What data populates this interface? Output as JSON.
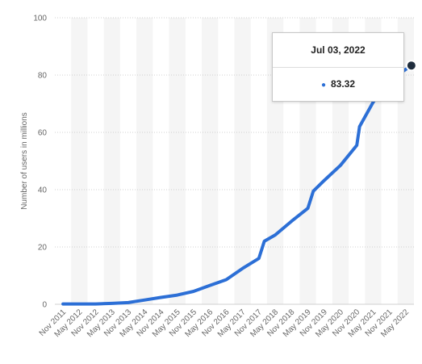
{
  "chart_data": {
    "type": "line",
    "title": "",
    "xlabel": "",
    "ylabel": "Number of users in millions",
    "ylim": [
      0,
      100
    ],
    "yticks": [
      0,
      20,
      40,
      60,
      80,
      100
    ],
    "xtick_labels": [
      "Nov 2011",
      "May 2012",
      "Nov 2012",
      "May 2013",
      "Nov 2013",
      "May 2014",
      "Nov 2014",
      "May 2015",
      "Nov 2015",
      "May 2016",
      "Nov 2016",
      "May 2017",
      "Nov 2017",
      "May 2018",
      "Nov 2018",
      "May 2019",
      "Nov 2019",
      "May 2020",
      "Nov 2020",
      "May 2021",
      "Nov 2021",
      "May 2022"
    ],
    "grid": true,
    "legend": "none",
    "line_color": "#2c6fd6",
    "series": [
      {
        "values": [
          [
            "Nov 2011",
            0.1
          ],
          [
            "May 2012",
            0.1
          ],
          [
            "Nov 2012",
            0.1
          ],
          [
            "May 2013",
            0.3
          ],
          [
            "Nov 2013",
            0.6
          ],
          [
            "May 2014",
            1.5
          ],
          [
            "Nov 2014",
            2.4
          ],
          [
            "May 2015",
            3.2
          ],
          [
            "Nov 2015",
            4.5
          ],
          [
            "May 2016",
            6.6
          ],
          [
            "Nov 2016",
            8.6
          ],
          [
            "May 2017",
            12.5
          ],
          [
            "Nov 2017",
            16.0
          ],
          [
            "Jan 2018",
            22.0
          ],
          [
            "May 2018",
            24.2
          ],
          [
            "Nov 2018",
            29.0
          ],
          [
            "May 2019",
            33.5
          ],
          [
            "Jul 2019",
            39.5
          ],
          [
            "Nov 2019",
            43.2
          ],
          [
            "May 2020",
            48.5
          ],
          [
            "Nov 2020",
            55.5
          ],
          [
            "Dec 2020",
            62.0
          ],
          [
            "May 2021",
            70.5
          ],
          [
            "Nov 2021",
            78.0
          ],
          [
            "May 2022",
            82.0
          ],
          [
            "Jul 03, 2022",
            83.32
          ]
        ]
      }
    ]
  },
  "tooltip": {
    "date": "Jul 03, 2022",
    "value": "83.32"
  }
}
